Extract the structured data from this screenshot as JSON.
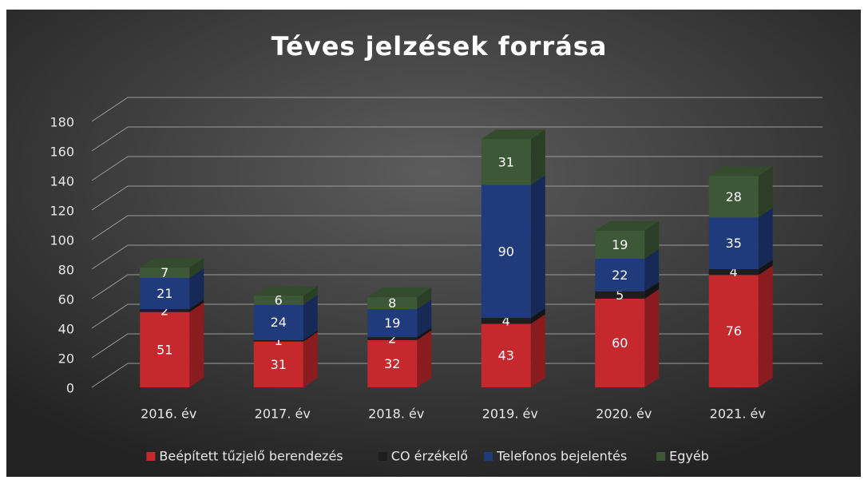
{
  "chart_data": {
    "type": "bar",
    "stacked": true,
    "title": "Téves jelzések forrása",
    "categories": [
      "2016. év",
      "2017. év",
      "2018. év",
      "2019. év",
      "2020. év",
      "2021. év"
    ],
    "series": [
      {
        "name": "Beépített tűzjelő berendezés",
        "color": "#c5282d",
        "values": [
          51,
          31,
          32,
          43,
          60,
          76
        ]
      },
      {
        "name": "CO érzékelő",
        "color": "#1e1e1e",
        "values": [
          2,
          1,
          2,
          4,
          5,
          4
        ]
      },
      {
        "name": "Telefonos bejelentés",
        "color": "#1f3b7c",
        "values": [
          21,
          24,
          19,
          90,
          22,
          35
        ]
      },
      {
        "name": "Egyéb",
        "color": "#3d5836",
        "values": [
          7,
          6,
          8,
          31,
          19,
          28
        ]
      }
    ],
    "ylim": [
      0,
      180
    ],
    "yticks": [
      0,
      20,
      40,
      60,
      80,
      100,
      120,
      140,
      160,
      180
    ],
    "grid": true,
    "legend": "bottom"
  }
}
